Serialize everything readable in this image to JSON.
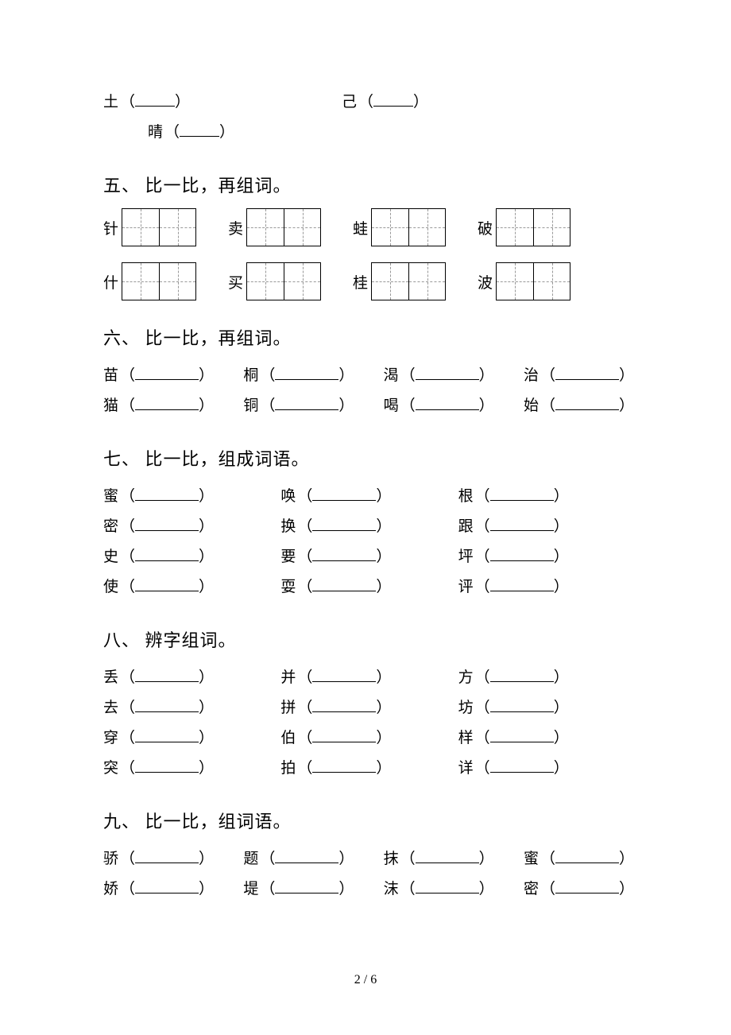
{
  "top": {
    "left_char": "土",
    "right_char": "己",
    "indent_char": "晴"
  },
  "sections": {
    "s5": {
      "title": "五、 比一比，再组词。",
      "row1": [
        "针",
        "卖",
        "蛙",
        "破"
      ],
      "row2": [
        "什",
        "买",
        "桂",
        "波"
      ]
    },
    "s6": {
      "title": "六、 比一比，再组词。",
      "rows": [
        [
          "苗",
          "桐",
          "渴",
          "治"
        ],
        [
          "猫",
          "铜",
          "喝",
          "始"
        ]
      ]
    },
    "s7": {
      "title": "七、 比一比，组成词语。",
      "cols": [
        [
          "蜜",
          "密",
          "史",
          "使"
        ],
        [
          "唤",
          "换",
          "要",
          "耍"
        ],
        [
          "根",
          "跟",
          "坪",
          "评"
        ]
      ]
    },
    "s8": {
      "title": "八、 辨字组词。",
      "cols": [
        [
          "丢",
          "去",
          "穿",
          "突"
        ],
        [
          "并",
          "拼",
          "伯",
          "拍"
        ],
        [
          "方",
          "坊",
          "样",
          "详"
        ]
      ]
    },
    "s9": {
      "title": "九、 比一比，组词语。",
      "rows": [
        [
          "骄",
          "题",
          "抹",
          "蜜"
        ],
        [
          "娇",
          "堤",
          "沫",
          "密"
        ]
      ]
    }
  },
  "footer": "2 / 6"
}
